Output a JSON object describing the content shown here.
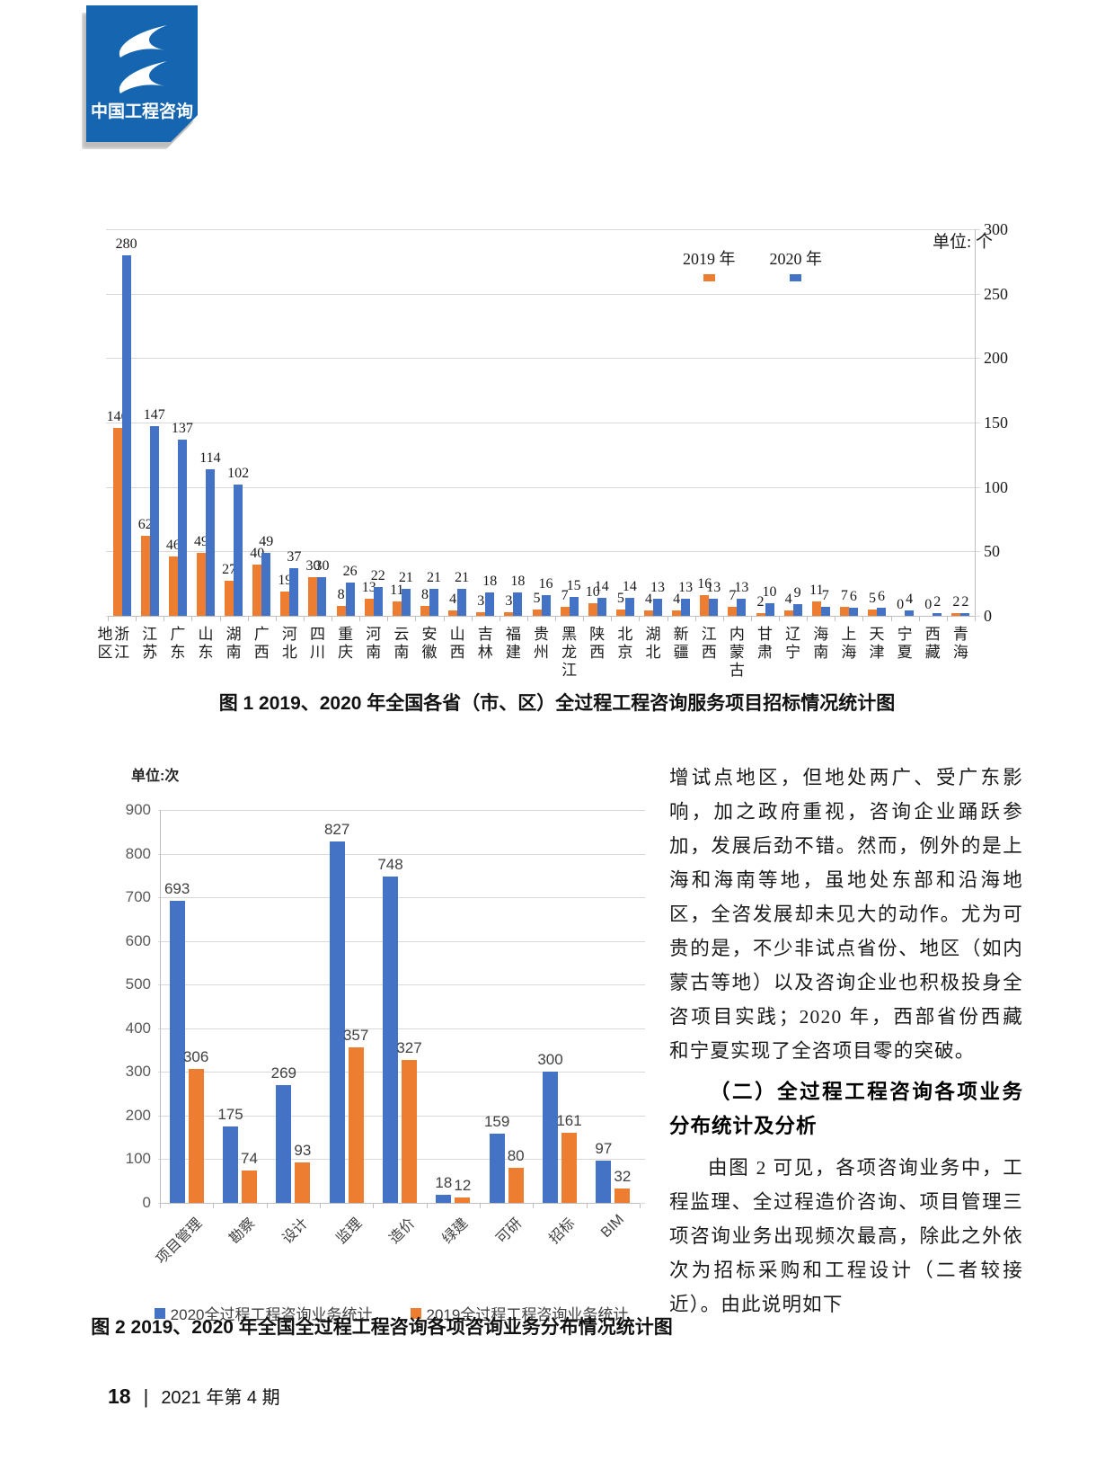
{
  "logo": {
    "text": "中国工程咨询",
    "color": "#1565b0"
  },
  "figure1": {
    "unit": "单位: 个",
    "axis_title": "地区",
    "caption": "图 1  2019、2020 年全国各省（市、区）全过程工程咨询服务项目招标情况统计图"
  },
  "figure2": {
    "unit": "单位:次",
    "caption": "图 2  2019、2020 年全国全过程工程咨询各项咨询业务分布情况统计图"
  },
  "article": {
    "para1": "增试点地区，但地处两广、受广东影响，加之政府重视，咨询企业踊跃参加，发展后劲不错。然而，例外的是上海和海南等地，虽地处东部和沿海地区，全咨发展却未见大的动作。尤为可贵的是，不少非试点省份、地区（如内蒙古等地）以及咨询企业也积极投身全咨项目实践；2020 年，西部省份西藏和宁夏实现了全咨项目零的突破。",
    "heading": "（二）全过程工程咨询各项业务分布统计及分析",
    "para2": "由图 2 可见，各项咨询业务中，工程监理、全过程造价咨询、项目管理三项咨询业务出现频次最高，除此之外依次为招标采购和工程设计（二者较接近）。由此说明如下"
  },
  "footer": {
    "page_number": "18",
    "separator": "|",
    "issue": "2021 年第 4 期"
  },
  "chart_data": [
    {
      "id": "fig1",
      "type": "bar",
      "title": "图 1  2019、2020 年全国各省（市、区）全过程工程咨询服务项目招标情况统计图",
      "unit": "单位: 个",
      "xlabel": "地区",
      "ylim": [
        0,
        300
      ],
      "ytick_step": 50,
      "y_axis_side": "right",
      "grid": true,
      "legend_position": "top",
      "categories": [
        "浙江",
        "江苏",
        "广东",
        "山东",
        "湖南",
        "广西",
        "河北",
        "四川",
        "重庆",
        "河南",
        "云南",
        "安徽",
        "山西",
        "吉林",
        "福建",
        "贵州",
        "黑龙江",
        "陕西",
        "北京",
        "湖北",
        "新疆",
        "江西",
        "内蒙古",
        "甘肃",
        "辽宁",
        "海南",
        "上海",
        "天津",
        "宁夏",
        "西藏",
        "青海"
      ],
      "series": [
        {
          "name": "2019 年",
          "color": "#ED7D31",
          "values": [
            146,
            62,
            46,
            49,
            27,
            40,
            19,
            30,
            8,
            13,
            11,
            8,
            4,
            3,
            3,
            5,
            7,
            10,
            5,
            4,
            4,
            16,
            7,
            2,
            4,
            11,
            7,
            5,
            0,
            0,
            2
          ]
        },
        {
          "name": "2020 年",
          "color": "#4472C4",
          "values": [
            280,
            147,
            137,
            114,
            102,
            49,
            37,
            30,
            26,
            22,
            21,
            21,
            21,
            18,
            18,
            16,
            15,
            14,
            14,
            13,
            13,
            13,
            13,
            10,
            9,
            7,
            6,
            6,
            4,
            2,
            2
          ]
        }
      ]
    },
    {
      "id": "fig2",
      "type": "bar",
      "title": "图 2  2019、2020 年全国全过程工程咨询各项咨询业务分布情况统计图",
      "unit": "单位:次",
      "ylim": [
        0,
        900
      ],
      "ytick_step": 100,
      "y_axis_side": "left",
      "grid": true,
      "legend_position": "bottom",
      "categories": [
        "项目管理",
        "勘察",
        "设计",
        "监理",
        "造价",
        "绿建",
        "可研",
        "招标",
        "BIM"
      ],
      "series": [
        {
          "name": "2020全过程工程咨询业务统计",
          "color": "#4472C4",
          "values": [
            693,
            175,
            269,
            827,
            748,
            18,
            159,
            300,
            97
          ]
        },
        {
          "name": "2019全过程工程咨询业务统计",
          "color": "#ED7D31",
          "values": [
            306,
            74,
            93,
            357,
            327,
            12,
            80,
            161,
            32
          ]
        }
      ]
    }
  ]
}
